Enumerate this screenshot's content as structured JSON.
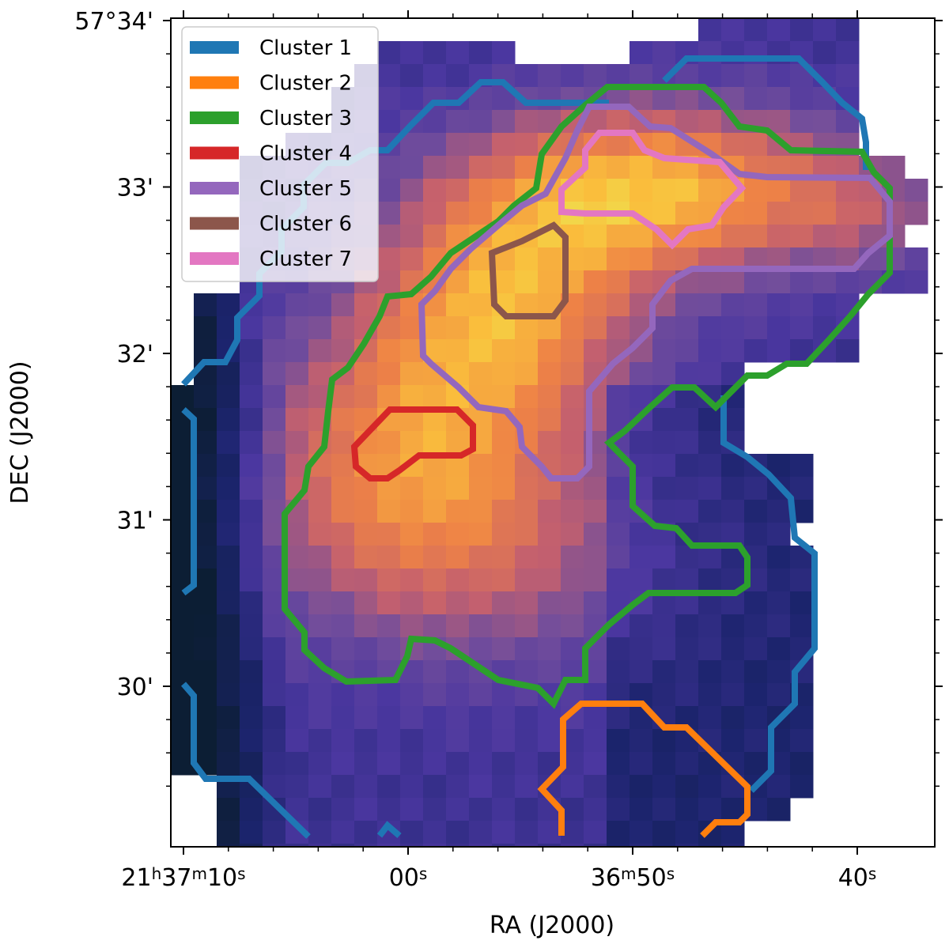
{
  "chart_data": {
    "type": "heatmap",
    "description_note": "",
    "xlabel": "RA (J2000)",
    "ylabel": "DEC (J2000)",
    "x_ticks": [
      {
        "ra_sec": 70,
        "parts": [
          [
            "21",
            ""
          ],
          [
            "h",
            "sup"
          ],
          [
            "37",
            ""
          ],
          [
            "m",
            "sup"
          ],
          [
            "10",
            ""
          ],
          [
            "s",
            "sup"
          ]
        ]
      },
      {
        "ra_sec": 60,
        "parts": [
          [
            "00",
            ""
          ],
          [
            "s",
            "sup"
          ]
        ]
      },
      {
        "ra_sec": 50,
        "parts": [
          [
            "36",
            ""
          ],
          [
            "m",
            "sup"
          ],
          [
            "50",
            ""
          ],
          [
            "s",
            "sup"
          ]
        ]
      },
      {
        "ra_sec": 40,
        "parts": [
          [
            "40",
            ""
          ],
          [
            "s",
            "sup"
          ]
        ]
      }
    ],
    "y_ticks": [
      {
        "dec_arcmin": 34,
        "label": "57°34'"
      },
      {
        "dec_arcmin": 33,
        "label": "33'"
      },
      {
        "dec_arcmin": 32,
        "label": "32'"
      },
      {
        "dec_arcmin": 31,
        "label": "31'"
      },
      {
        "dec_arcmin": 30,
        "label": "30'"
      }
    ],
    "xlim_ra_sec": [
      71.0,
      38.5
    ],
    "ylim_dec_arcmin": [
      29.1,
      34.0
    ],
    "colormap": "plasma-like (dark navy to yellow)",
    "legend": {
      "placement": "top-left",
      "entries": [
        {
          "name": "Cluster 1",
          "color": "#1f77b4"
        },
        {
          "name": "Cluster 2",
          "color": "#ff7f0e"
        },
        {
          "name": "Cluster 3",
          "color": "#2ca02c"
        },
        {
          "name": "Cluster 4",
          "color": "#d62728"
        },
        {
          "name": "Cluster 5",
          "color": "#9467bd"
        },
        {
          "name": "Cluster 6",
          "color": "#8c564b"
        },
        {
          "name": "Cluster 7",
          "color": "#e377c2"
        }
      ]
    }
  }
}
